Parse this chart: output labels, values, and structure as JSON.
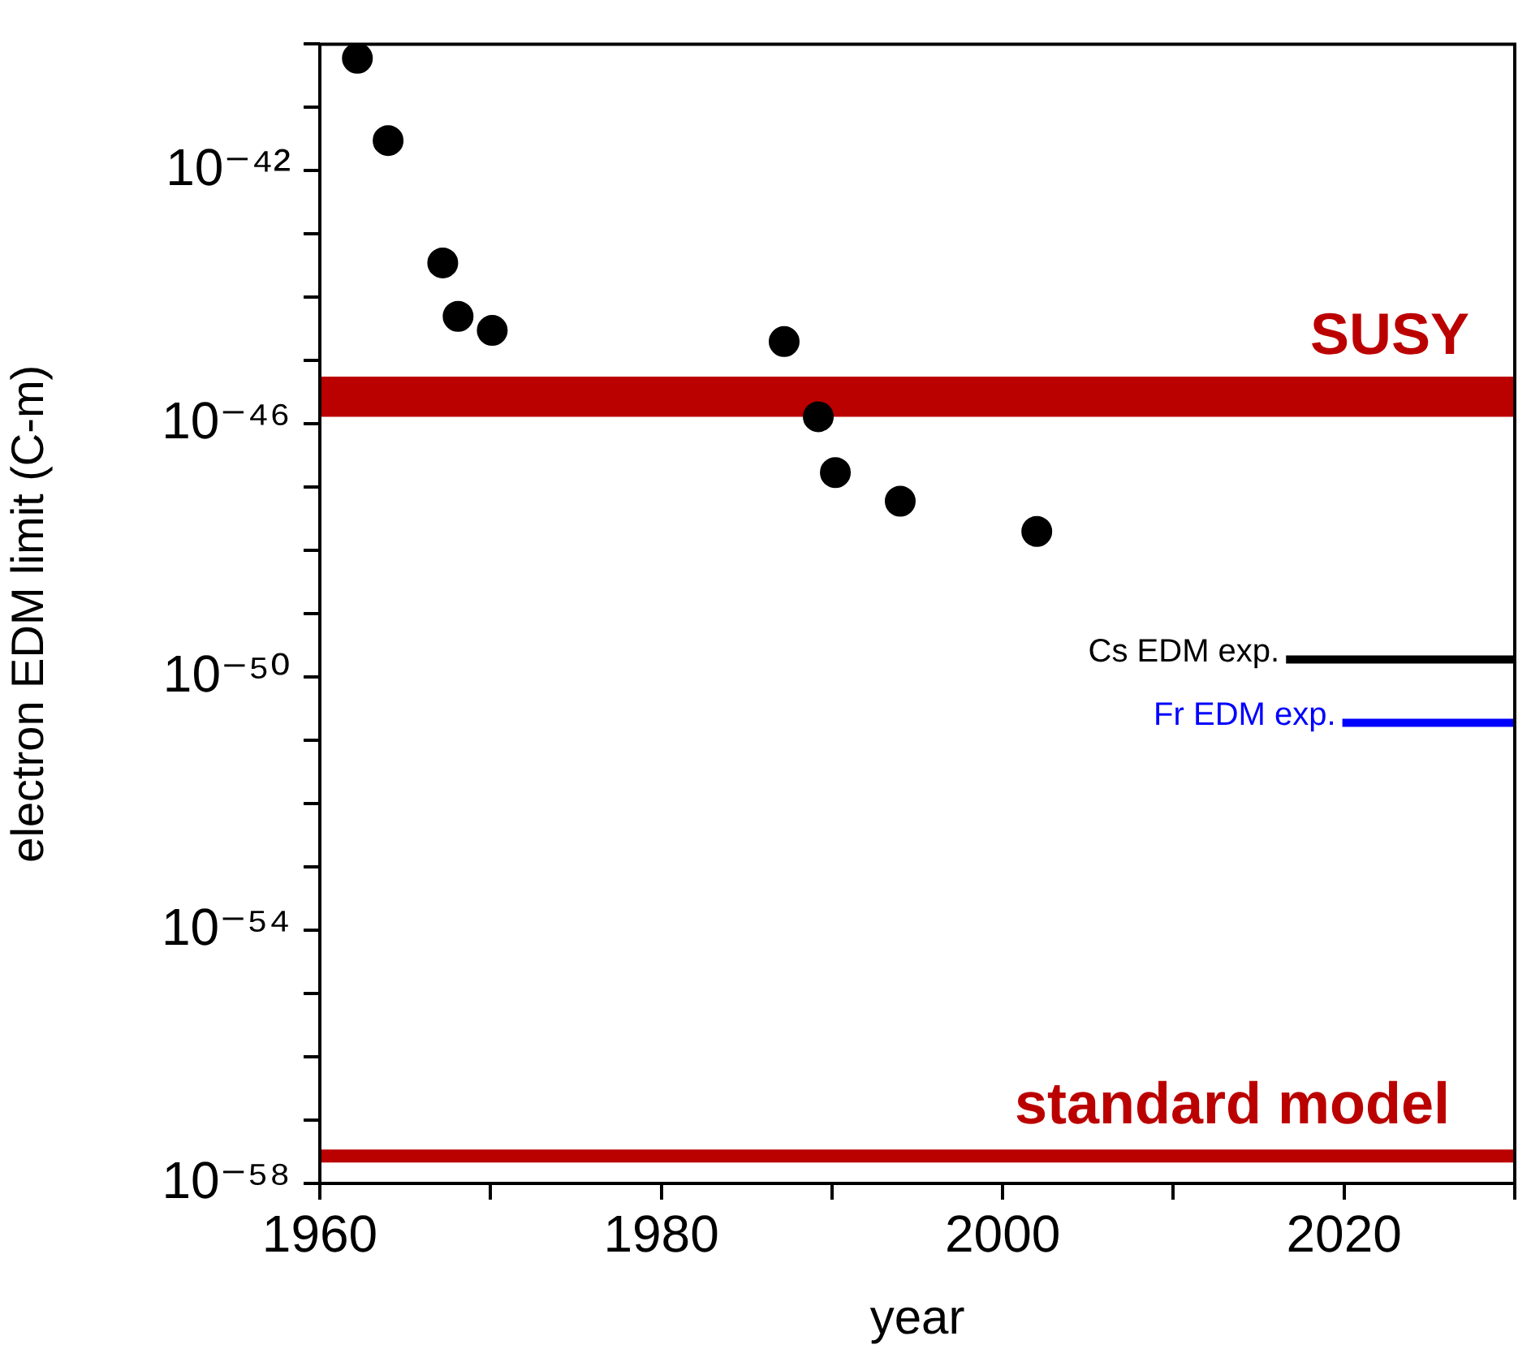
{
  "chart_data": {
    "type": "scatter",
    "xlabel": "year",
    "ylabel": "electron EDM limit (C-m)",
    "log": "y",
    "grid": false,
    "legend": false,
    "marker": "circle",
    "line_style": "solid",
    "xlim": [
      1960,
      2030
    ],
    "xticks": [
      1960,
      {
        "value": 1970,
        "label": null
      },
      1980,
      {
        "value": 1990,
        "label": null
      },
      2000,
      {
        "value": 2010,
        "label": null
      },
      2020,
      {
        "value": 2030,
        "label": null
      }
    ],
    "ylim": [
      1e-58,
      1e-40
    ],
    "yticks": [
      {
        "value": 1e-58,
        "label": "10⁻⁵⁸"
      },
      {
        "value": 1e-57,
        "label": null
      },
      {
        "value": 1e-56,
        "label": null
      },
      {
        "value": 1e-55,
        "label": null
      },
      {
        "value": 1e-54,
        "label": "10⁻⁵⁴"
      },
      {
        "value": 1e-53,
        "label": null
      },
      {
        "value": 1e-52,
        "label": null
      },
      {
        "value": 1e-51,
        "label": null
      },
      {
        "value": 1e-50,
        "label": "10⁻⁵⁰"
      },
      {
        "value": 1e-49,
        "label": null
      },
      {
        "value": 1e-48,
        "label": null
      },
      {
        "value": 1e-47,
        "label": null
      },
      {
        "value": 1e-46,
        "label": "10⁻⁴⁶"
      },
      {
        "value": 1e-45,
        "label": null
      },
      {
        "value": 1e-44,
        "label": null
      },
      {
        "value": 1e-43,
        "label": null
      },
      {
        "value": 1e-42,
        "label": "10⁻⁴²"
      },
      {
        "value": 1e-41,
        "label": null
      },
      {
        "value": 1e-40,
        "label": null
      }
    ],
    "series": [
      {
        "type": "scatter",
        "color": "#000000",
        "x": [
          1962.2,
          1964,
          1967.2,
          1968.1,
          1970.1,
          1987.2,
          1989.2,
          1990.2,
          1994,
          2002
        ],
        "values": [
          6e-41,
          3e-42,
          3.5e-44,
          5e-45,
          3e-45,
          2e-45,
          1.3e-46,
          1.7e-47,
          6e-48,
          2e-48
        ]
      },
      {
        "type": "line",
        "name": "Cs EDM exp.",
        "color": "#000000",
        "marker": "none",
        "x": [
          2016.6,
          2030
        ],
        "values": [
          1.9e-50,
          1.9e-50
        ]
      },
      {
        "type": "line",
        "name": "Fr EDM exp.",
        "color": "#0000ff",
        "marker": "none",
        "x": [
          2019.9,
          2030
        ],
        "values": [
          1.9e-51,
          1.9e-51
        ]
      }
    ],
    "bands": [
      {
        "axis": "y",
        "from": 1.3e-46,
        "to": 5.6e-46,
        "label": "SUSY",
        "color": "#bb0000"
      }
    ],
    "ref_lines": [
      {
        "axis": "y",
        "value": 2.7e-58,
        "label": "standard model",
        "color": "#bb0000"
      }
    ]
  }
}
